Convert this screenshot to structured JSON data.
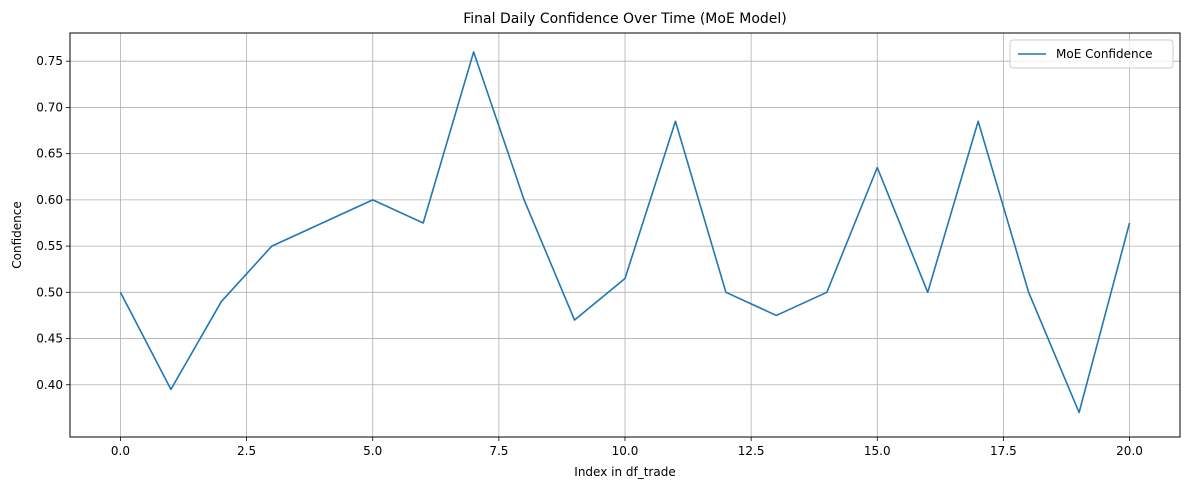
{
  "chart_data": {
    "type": "line",
    "title": "Final Daily Confidence Over Time (MoE Model)",
    "xlabel": "Index in df_trade",
    "ylabel": "Confidence",
    "xlim": [
      -1.0,
      21.0
    ],
    "ylim": [
      0.3435,
      0.7805
    ],
    "xticks": [
      0.0,
      2.5,
      5.0,
      7.5,
      10.0,
      12.5,
      15.0,
      17.5,
      20.0
    ],
    "xtick_labels": [
      "0.0",
      "2.5",
      "5.0",
      "7.5",
      "10.0",
      "12.5",
      "15.0",
      "17.5",
      "20.0"
    ],
    "yticks": [
      0.4,
      0.45,
      0.5,
      0.55,
      0.6,
      0.65,
      0.7,
      0.75
    ],
    "ytick_labels": [
      "0.40",
      "0.45",
      "0.50",
      "0.55",
      "0.60",
      "0.65",
      "0.70",
      "0.75"
    ],
    "grid": true,
    "legend_position": "top-right",
    "series": [
      {
        "name": "MoE Confidence",
        "color": "#1f77b4",
        "x": [
          0,
          1,
          2,
          3,
          4,
          5,
          6,
          7,
          8,
          9,
          10,
          11,
          12,
          13,
          14,
          15,
          16,
          17,
          18,
          19,
          20
        ],
        "y": [
          0.5,
          0.395,
          0.49,
          0.55,
          0.575,
          0.6,
          0.575,
          0.76,
          0.6,
          0.47,
          0.515,
          0.685,
          0.5,
          0.475,
          0.5,
          0.635,
          0.5,
          0.685,
          0.5,
          0.37,
          0.575
        ]
      }
    ]
  }
}
